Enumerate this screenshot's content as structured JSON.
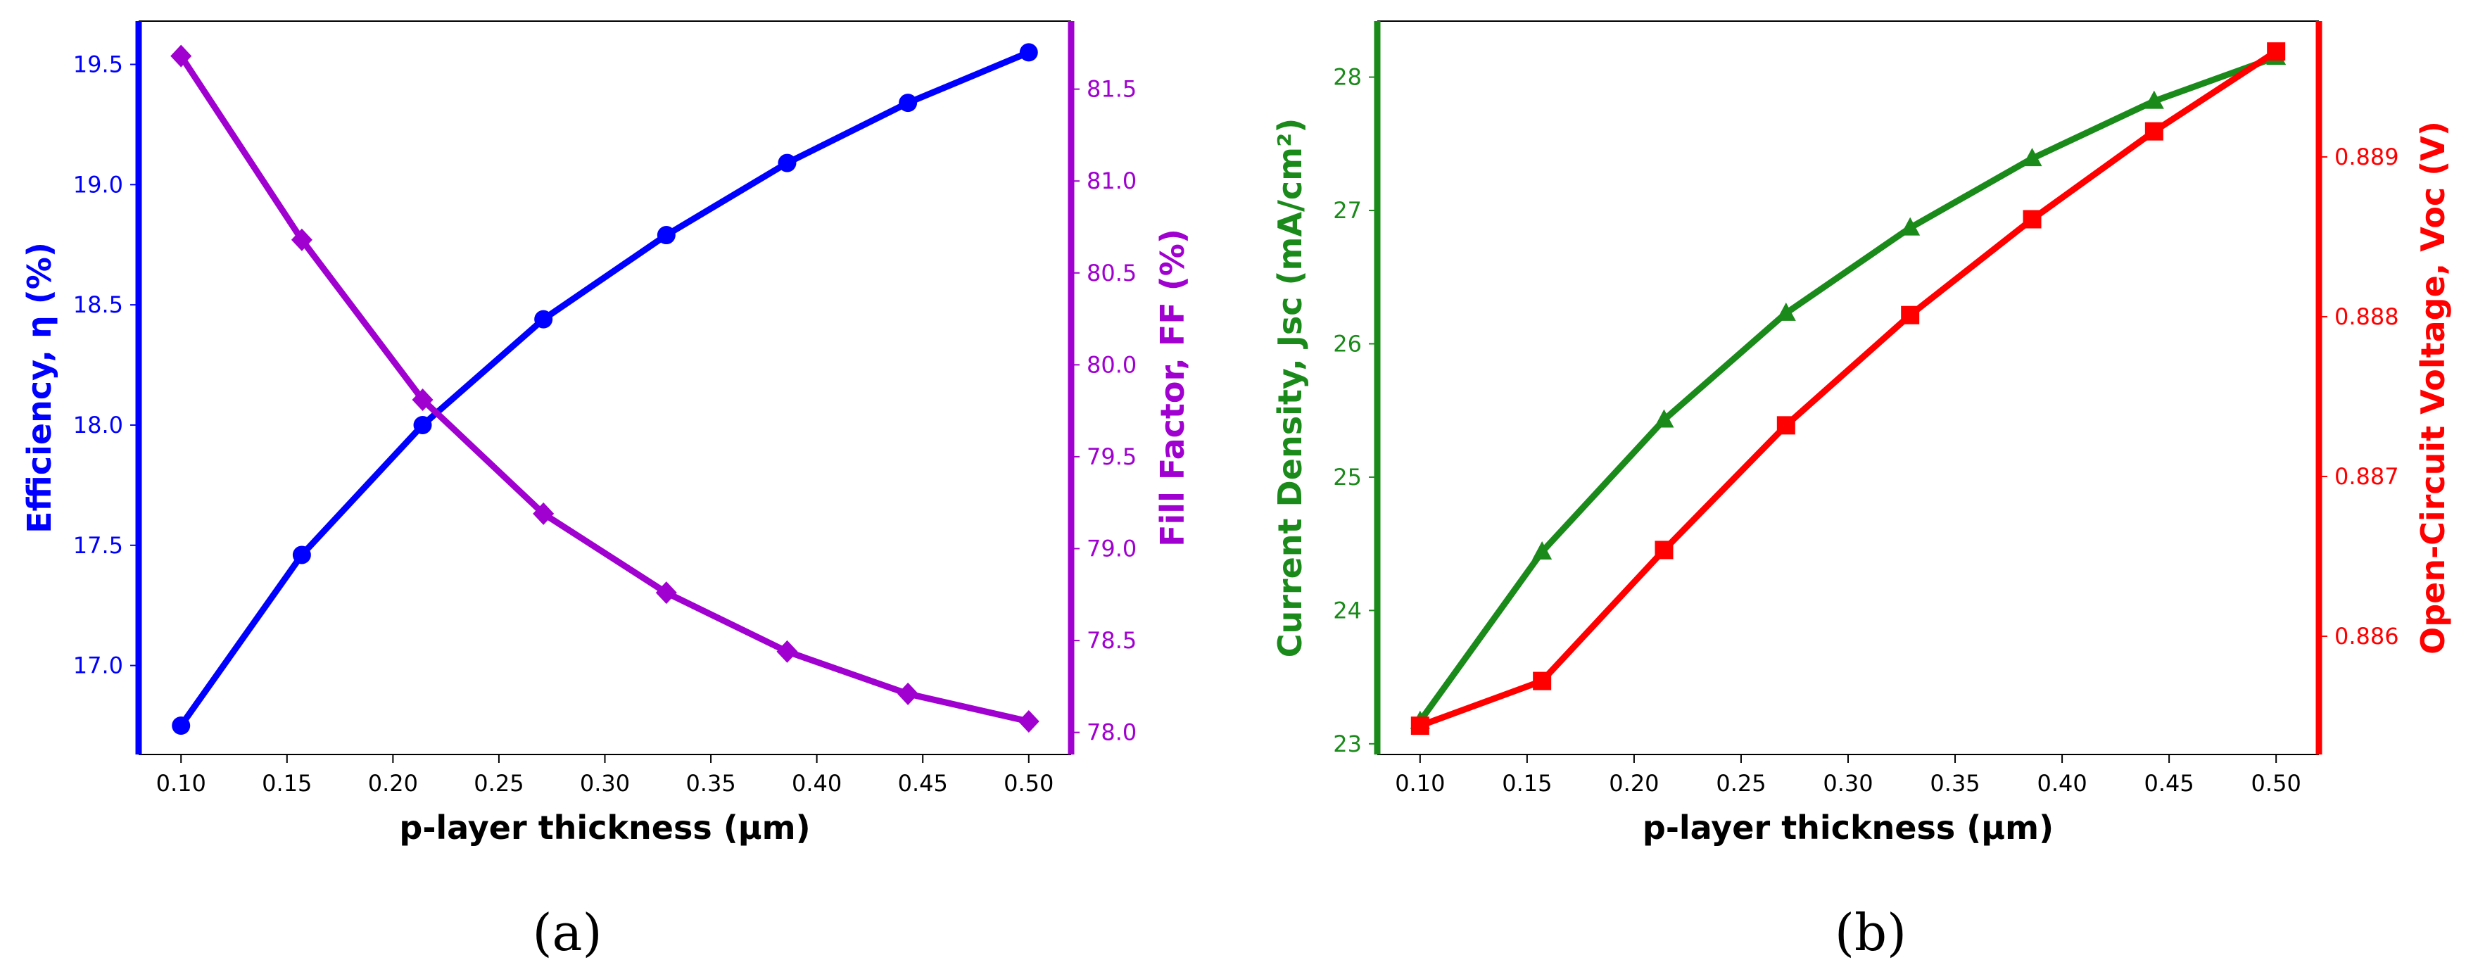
{
  "colors": {
    "efficiency": "#0000ff",
    "fill_factor": "#a000d0",
    "jsc": "#1a8a1a",
    "voc": "#ff0000",
    "frame": "#000000"
  },
  "chart_data": [
    {
      "type": "line",
      "panel_label": "(a)",
      "xlabel": "p-layer thickness (μm)",
      "xlim": [
        0.08,
        0.52
      ],
      "x_ticks": [
        "0.10",
        "0.15",
        "0.20",
        "0.25",
        "0.30",
        "0.35",
        "0.40",
        "0.45",
        "0.50"
      ],
      "x": [
        0.1,
        0.157,
        0.214,
        0.271,
        0.329,
        0.386,
        0.443,
        0.5
      ],
      "grid": false,
      "legend": "none",
      "y_left": {
        "label": "Efficiency, η (%)",
        "ylim": [
          16.63,
          19.68
        ],
        "ticks": [
          "17.0",
          "17.5",
          "18.0",
          "18.5",
          "19.0",
          "19.5"
        ],
        "color": "#0000ff"
      },
      "y_right": {
        "label": "Fill Factor, FF (%)",
        "ylim": [
          77.88,
          81.87
        ],
        "ticks": [
          "78.0",
          "78.5",
          "79.0",
          "79.5",
          "80.0",
          "80.5",
          "81.0",
          "81.5"
        ],
        "color": "#a000d0"
      },
      "series": [
        {
          "axis": "left",
          "marker": "circle",
          "color": "#0000ff",
          "values": [
            16.75,
            17.46,
            18.0,
            18.44,
            18.79,
            19.09,
            19.34,
            19.55
          ]
        },
        {
          "axis": "right",
          "marker": "diamond",
          "color": "#a000d0",
          "values": [
            81.68,
            80.68,
            79.81,
            79.19,
            78.76,
            78.44,
            78.21,
            78.06
          ]
        }
      ]
    },
    {
      "type": "line",
      "panel_label": "(b)",
      "xlabel": "p-layer thickness (μm)",
      "xlim": [
        0.08,
        0.52
      ],
      "x_ticks": [
        "0.10",
        "0.15",
        "0.20",
        "0.25",
        "0.30",
        "0.35",
        "0.40",
        "0.45",
        "0.50"
      ],
      "x": [
        0.1,
        0.157,
        0.214,
        0.271,
        0.329,
        0.386,
        0.443,
        0.5
      ],
      "grid": false,
      "legend": "none",
      "y_left": {
        "label": "Current Density, Jsc (mA/cm²)",
        "ylim": [
          22.92,
          28.42
        ],
        "ticks": [
          "23",
          "24",
          "25",
          "26",
          "27",
          "28"
        ],
        "color": "#1a8a1a"
      },
      "y_right": {
        "label": "Open-Circuit Voltage, Voc (V)",
        "ylim": [
          0.88526,
          0.88985
        ],
        "ticks": [
          "0.886",
          "0.887",
          "0.888",
          "0.889"
        ],
        "color": "#ff0000"
      },
      "series": [
        {
          "axis": "left",
          "marker": "triangle",
          "color": "#1a8a1a",
          "values": [
            23.17,
            24.44,
            25.43,
            26.23,
            26.87,
            27.39,
            27.82,
            28.15
          ]
        },
        {
          "axis": "right",
          "marker": "square",
          "color": "#ff0000",
          "values": [
            0.88544,
            0.88572,
            0.88654,
            0.88732,
            0.88801,
            0.88861,
            0.88916,
            0.88966
          ]
        }
      ]
    }
  ]
}
